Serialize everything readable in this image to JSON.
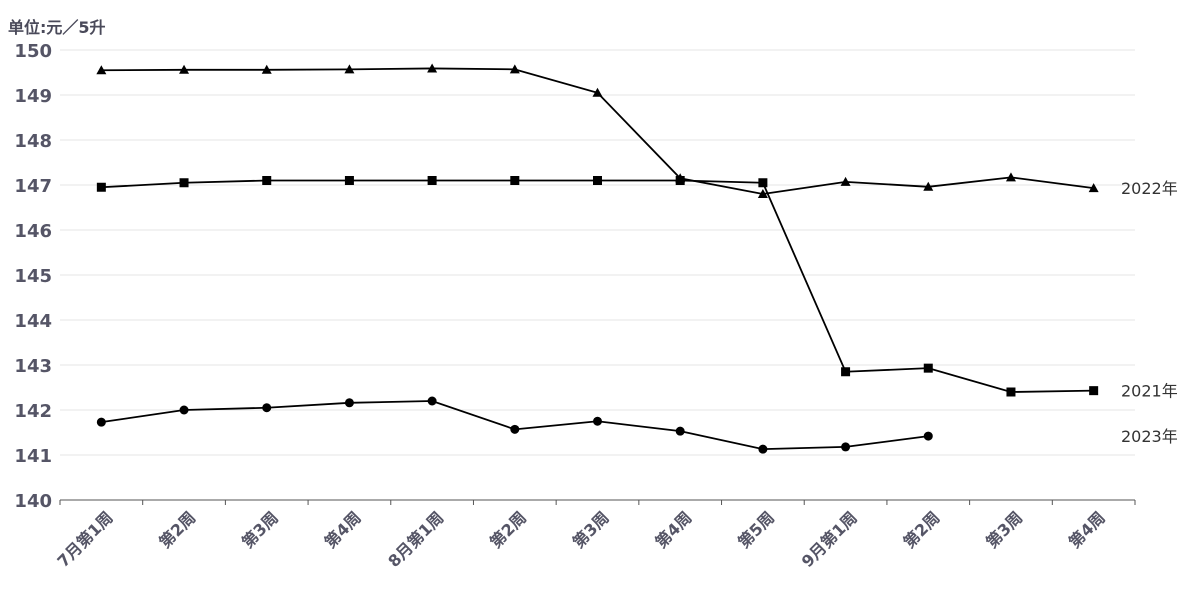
{
  "chart_data": {
    "type": "line",
    "unit_label": "单位:元／5升",
    "categories": [
      "7月第1周",
      "第2周",
      "第3周",
      "第4周",
      "8月第1周",
      "第2周",
      "第3周",
      "第4周",
      "第5周",
      "9月第1周",
      "第2周",
      "第3周",
      "第4周"
    ],
    "ylim": [
      140,
      150
    ],
    "yticks": [
      140,
      141,
      142,
      143,
      144,
      145,
      146,
      147,
      148,
      149,
      150
    ],
    "grid": true,
    "series": [
      {
        "name": "2022年",
        "marker": "triangle",
        "values": [
          149.55,
          149.56,
          149.56,
          149.57,
          149.59,
          149.57,
          149.05,
          147.15,
          146.8,
          147.07,
          146.96,
          147.17,
          146.93
        ]
      },
      {
        "name": "2021年",
        "marker": "square",
        "values": [
          146.95,
          147.05,
          147.1,
          147.1,
          147.1,
          147.1,
          147.1,
          147.1,
          147.05,
          142.85,
          142.93,
          142.4,
          142.43
        ]
      },
      {
        "name": "2023年",
        "marker": "circle",
        "values": [
          141.73,
          142.0,
          142.05,
          142.16,
          142.2,
          141.57,
          141.75,
          141.53,
          141.13,
          141.18,
          141.42,
          null,
          null
        ]
      }
    ]
  },
  "colors": {
    "line": "#000000",
    "grid": "#e6e6e6",
    "axis": "#555555",
    "tick_text": "#555566",
    "series_label": "#333333"
  }
}
